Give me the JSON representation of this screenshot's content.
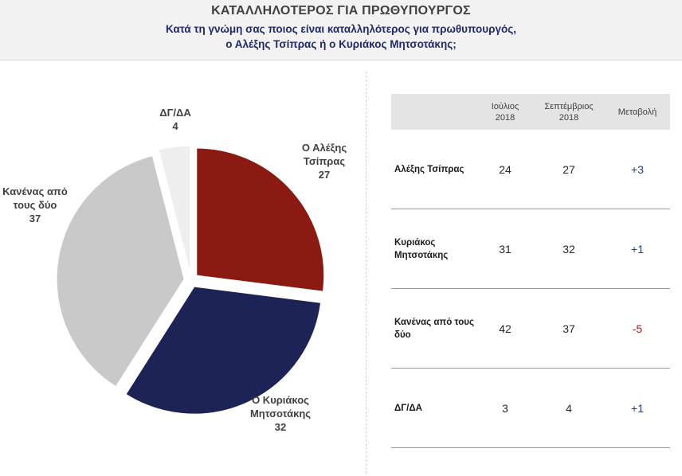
{
  "header": {
    "title": "ΚΑΤΑΛΛΗΛΟΤΕΡΟΣ ΓΙΑ ΠΡΩΘΥΠΟΥΡΓΟΣ",
    "question_line1": "Κατά τη γνώμη σας ποιος είναι καταλληλότερος για πρωθυπουργός,",
    "question_line2": "ο Αλέξης Τσίπρας ή ο Κυριάκος Μητσοτάκης;"
  },
  "colors": {
    "tsipras": "#8b1a13",
    "mitsotakis": "#1d2455",
    "neither": "#c9c9c9",
    "dk": "#eeeeee",
    "positive_change": "#1f3f8a",
    "negative_change": "#9c1f17"
  },
  "chart_data": {
    "type": "pie",
    "title": "",
    "slices": [
      {
        "label_lines": [
          "Ο Αλέξης",
          "Τσίπρας"
        ],
        "value": 27,
        "color": "#8b1a13",
        "exploded": true
      },
      {
        "label_lines": [
          "Ο Κυριάκος",
          "Μητσοτάκης"
        ],
        "value": 32,
        "color": "#1d2455",
        "exploded": true
      },
      {
        "label_lines": [
          "Κανένας από",
          "τους δύο"
        ],
        "value": 37,
        "color": "#c9c9c9",
        "exploded": true
      },
      {
        "label_lines": [
          "ΔΓ/ΔΑ"
        ],
        "value": 4,
        "color": "#eeeeee",
        "exploded": true
      }
    ]
  },
  "table": {
    "headers": [
      {
        "line1": "Ιούλιος",
        "line2": "2018"
      },
      {
        "line1": "Σεπτέμβριος",
        "line2": "2018"
      },
      {
        "line1": "Μεταβολή",
        "line2": ""
      }
    ],
    "rows": [
      {
        "label": "Αλέξης Τσίπρας",
        "july": "24",
        "september": "27",
        "change": "+3",
        "change_color": "#1f3f8a"
      },
      {
        "label": "Κυριάκος Μητσοτάκης",
        "july": "31",
        "september": "32",
        "change": "+1",
        "change_color": "#1f3f8a"
      },
      {
        "label": "Κανένας από τους δύο",
        "july": "42",
        "september": "37",
        "change": "-5",
        "change_color": "#9c1f17"
      },
      {
        "label": "ΔΓ/ΔΑ",
        "july": "3",
        "september": "4",
        "change": "+1",
        "change_color": "#1f3f8a"
      }
    ]
  }
}
